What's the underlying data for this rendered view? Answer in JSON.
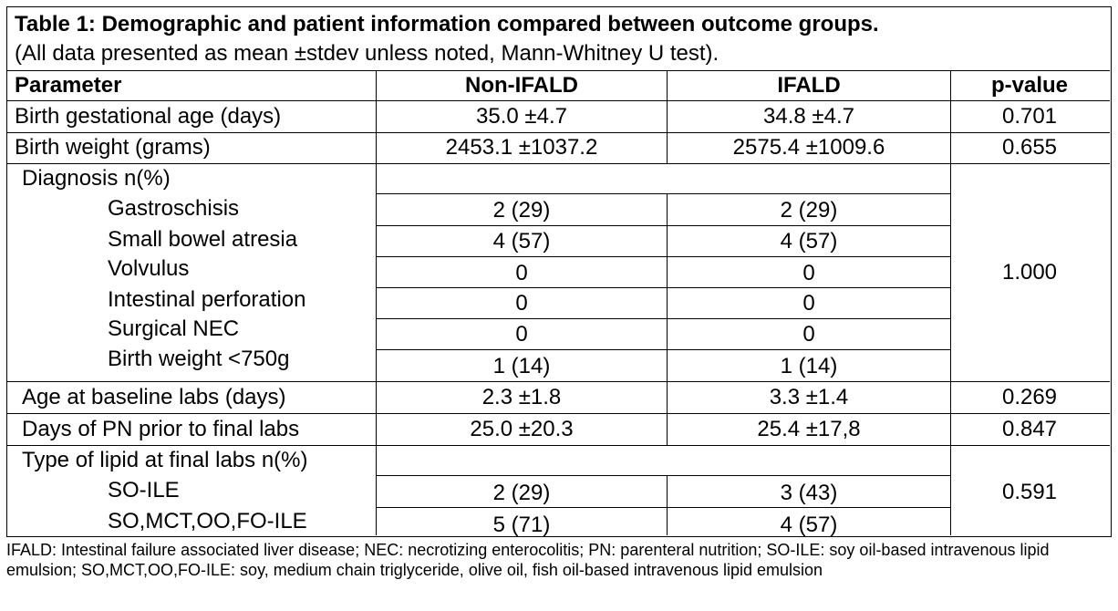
{
  "caption": {
    "title": "Table 1: Demographic and patient information compared between outcome groups.",
    "subtitle": "(All data presented as mean ±stdev unless noted, Mann-Whitney U test)."
  },
  "headers": [
    "Parameter",
    "Non-IFALD",
    "IFALD",
    "p-value"
  ],
  "rows": {
    "gest_age": {
      "param": "Birth gestational age (days)",
      "non": "35.0 ±4.7",
      "ifald": "34.8 ±4.7",
      "p": "0.701"
    },
    "birth_weight": {
      "param": "Birth weight (grams)",
      "non": "2453.1 ±1037.2",
      "ifald": "2575.4 ±1009.6",
      "p": "0.655"
    },
    "diagnosis": {
      "label": "Diagnosis n(%)",
      "p": "1.000",
      "items": [
        {
          "name": "Gastroschisis",
          "non": "2 (29)",
          "ifald": "2 (29)"
        },
        {
          "name": "Small bowel atresia",
          "non": "4 (57)",
          "ifald": "4 (57)"
        },
        {
          "name": "Volvulus",
          "non": "0",
          "ifald": "0"
        },
        {
          "name": "Intestinal perforation",
          "non": "0",
          "ifald": "0"
        },
        {
          "name": "Surgical NEC",
          "non": "0",
          "ifald": "0"
        },
        {
          "name": "Birth weight <750g",
          "non": "1 (14)",
          "ifald": "1 (14)"
        }
      ]
    },
    "baseline_age": {
      "param": "Age at baseline labs (days)",
      "non": "2.3 ±1.8",
      "ifald": "3.3 ±1.4",
      "p": "0.269"
    },
    "pn_days": {
      "param": "Days of PN prior to final labs",
      "non": "25.0 ±20.3",
      "ifald": "25.4 ±17,8",
      "p": "0.847"
    },
    "lipid": {
      "label": "Type of lipid at final labs n(%)",
      "p": "0.591",
      "items": [
        {
          "name": "SO-ILE",
          "non": "2 (29)",
          "ifald": "3 (43)"
        },
        {
          "name": "SO,MCT,OO,FO-ILE",
          "non": "5 (71)",
          "ifald": "4 (57)"
        }
      ]
    }
  },
  "footnote": "IFALD: Intestinal failure associated liver disease; NEC: necrotizing enterocolitis; PN: parenteral nutrition; SO-ILE: soy oil-based intravenous lipid emulsion; SO,MCT,OO,FO-ILE: soy, medium chain triglyceride, olive oil, fish oil-based intravenous lipid emulsion"
}
